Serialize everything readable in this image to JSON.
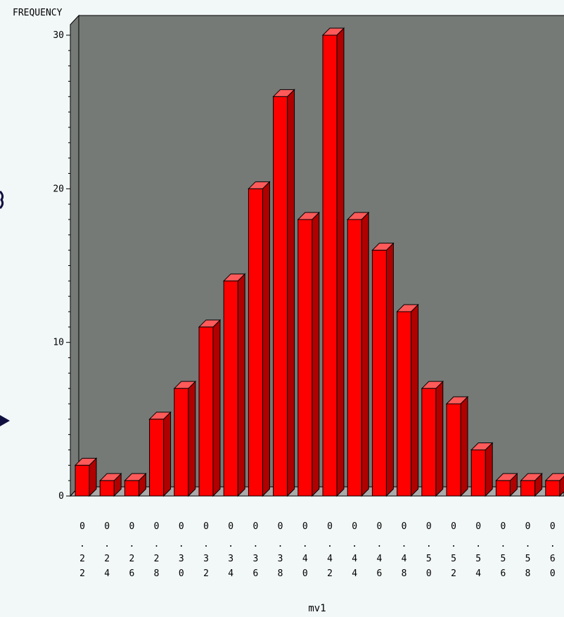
{
  "chart_data": {
    "type": "bar",
    "title": "",
    "ylabel": "FREQUENCY",
    "xlabel": "mv1",
    "ylim": [
      0,
      30
    ],
    "yticks": [
      0,
      10,
      20,
      30
    ],
    "categories": [
      "0.22",
      "0.24",
      "0.26",
      "0.28",
      "0.30",
      "0.32",
      "0.34",
      "0.36",
      "0.38",
      "0.40",
      "0.42",
      "0.44",
      "0.46",
      "0.48",
      "0.50",
      "0.52",
      "0.54",
      "0.56",
      "0.58",
      "0.60"
    ],
    "values": [
      2,
      1,
      1,
      5,
      7,
      11,
      14,
      20,
      26,
      18,
      30,
      18,
      16,
      12,
      7,
      6,
      3,
      1,
      1,
      1
    ],
    "grid": false,
    "colors": {
      "bar_front": "#ff0000",
      "bar_top": "#ff5a5a",
      "bar_side": "#b00000",
      "plot_background": "#767a76",
      "floor": "#aaaaaa",
      "page_background": "#f2f7f7"
    }
  }
}
